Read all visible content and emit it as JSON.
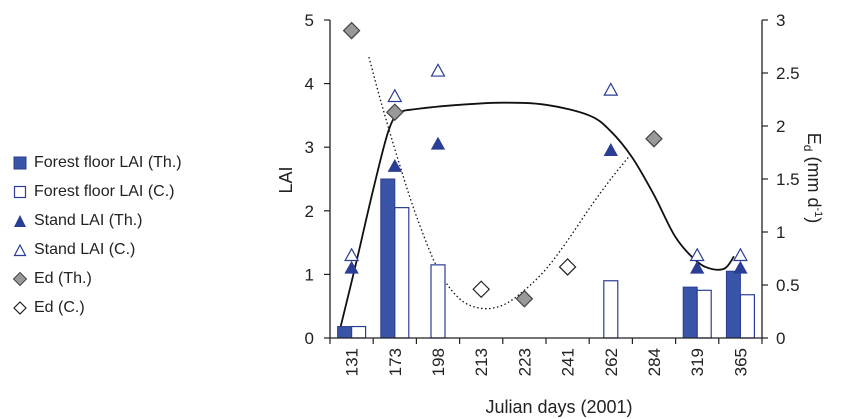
{
  "chart_data": {
    "type": "bar",
    "xlabel": "Julian days (2001)",
    "ylabel": "LAI",
    "y2label_main": "E",
    "y2label_sub": "d",
    "y2label_unit": " (mm d",
    "y2label_sup": "-1",
    "y2label_close": ")",
    "categories": [
      "131",
      "173",
      "198",
      "213",
      "223",
      "241",
      "262",
      "284",
      "319",
      "365"
    ],
    "ylim": [
      0,
      5
    ],
    "yticks": [
      "0",
      "1",
      "2",
      "3",
      "4",
      "5"
    ],
    "y2lim": [
      0,
      3
    ],
    "y2ticks": [
      "0",
      "0.5",
      "1",
      "1.5",
      "2",
      "2.5",
      "3"
    ],
    "series": [
      {
        "name": "Forest floor LAI (Th.)",
        "marker": "bar-filled",
        "axis": "left",
        "values": [
          0.18,
          2.5,
          null,
          null,
          null,
          null,
          null,
          null,
          0.8,
          1.05
        ]
      },
      {
        "name": "Forest floor LAI (C.)",
        "marker": "bar-open",
        "axis": "left",
        "values": [
          0.18,
          2.05,
          1.15,
          null,
          null,
          null,
          0.9,
          null,
          0.75,
          0.68
        ]
      },
      {
        "name": "Stand LAI (Th.)",
        "marker": "triangle-filled",
        "axis": "left",
        "values": [
          1.1,
          2.7,
          3.05,
          null,
          null,
          null,
          2.95,
          null,
          1.1,
          1.1
        ]
      },
      {
        "name": "Stand LAI (C.)",
        "marker": "triangle-open",
        "axis": "left",
        "values": [
          1.3,
          3.8,
          4.2,
          null,
          null,
          null,
          3.9,
          null,
          1.3,
          1.3
        ]
      },
      {
        "name": "Ed (Th.)",
        "marker": "diamond-filled",
        "axis": "right",
        "values": [
          2.9,
          2.13,
          null,
          null,
          0.37,
          null,
          null,
          1.88,
          null,
          null
        ]
      },
      {
        "name": "Ed (C.)",
        "marker": "diamond-open",
        "axis": "right",
        "values": [
          null,
          null,
          null,
          0.46,
          null,
          0.67,
          null,
          null,
          null,
          null
        ]
      }
    ],
    "fit_curves": [
      {
        "style": "solid",
        "axis": "right",
        "points": [
          [
            0.2,
            0.03
          ],
          [
            0.6,
            0.7
          ],
          [
            1.0,
            1.4
          ],
          [
            1.35,
            1.95
          ],
          [
            1.6,
            2.12
          ],
          [
            2.0,
            2.16
          ],
          [
            3.0,
            2.2
          ],
          [
            4.0,
            2.22
          ],
          [
            5.0,
            2.2
          ],
          [
            6.0,
            2.1
          ],
          [
            6.5,
            1.95
          ],
          [
            7.0,
            1.7
          ],
          [
            7.5,
            1.35
          ],
          [
            8.0,
            0.95
          ],
          [
            8.5,
            0.72
          ],
          [
            8.85,
            0.65
          ],
          [
            9.15,
            0.66
          ],
          [
            9.35,
            0.77
          ]
        ]
      },
      {
        "style": "dotted",
        "axis": "right",
        "points": [
          [
            0.9,
            2.65
          ],
          [
            1.2,
            2.2
          ],
          [
            1.6,
            1.65
          ],
          [
            2.0,
            1.15
          ],
          [
            2.5,
            0.65
          ],
          [
            3.0,
            0.37
          ],
          [
            3.5,
            0.28
          ],
          [
            4.0,
            0.31
          ],
          [
            4.5,
            0.45
          ],
          [
            5.0,
            0.65
          ],
          [
            5.5,
            0.92
          ],
          [
            6.0,
            1.22
          ],
          [
            6.5,
            1.5
          ],
          [
            7.0,
            1.75
          ]
        ]
      }
    ],
    "grid": false,
    "legend": "left",
    "colors": {
      "filled": "#3a54a8",
      "outline": "#2b3d94",
      "gray": "#999999",
      "axis": "#222222"
    }
  }
}
